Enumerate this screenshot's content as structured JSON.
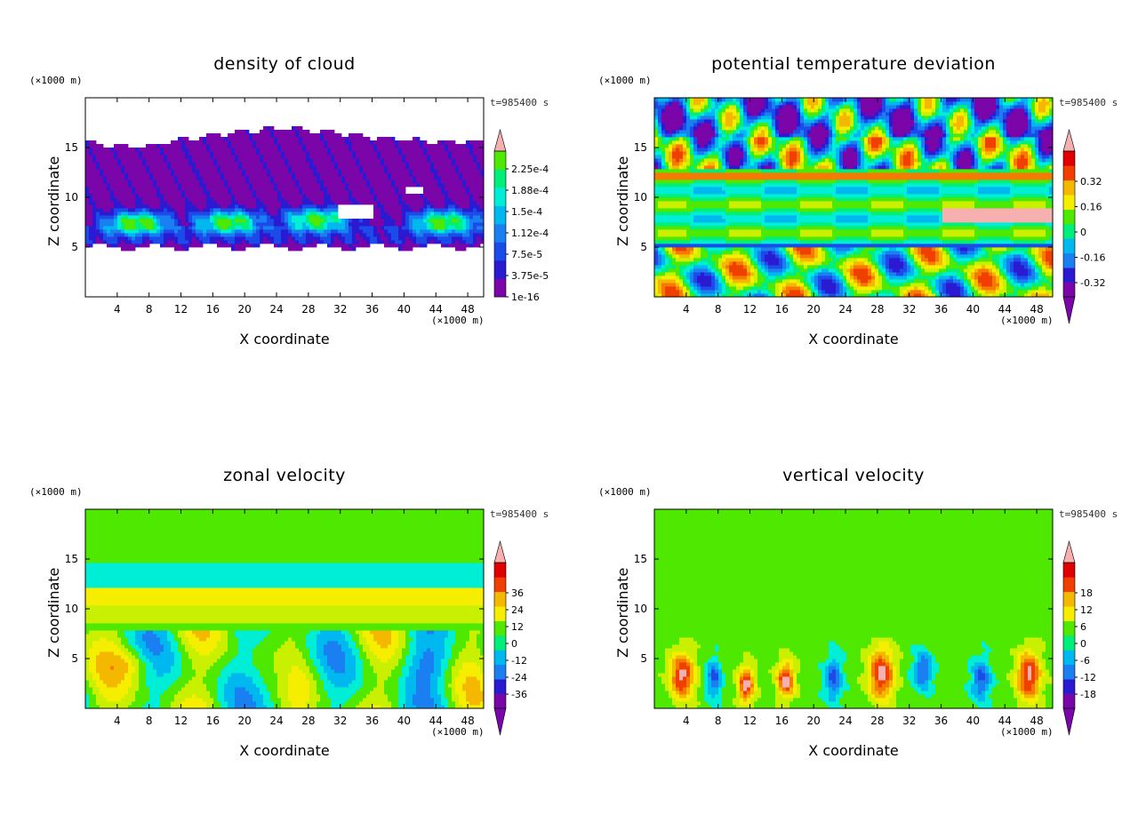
{
  "colors": {
    "palette": [
      "#7a05a8",
      "#2a1ad2",
      "#1b4be8",
      "#1a7ff0",
      "#00b8f0",
      "#00eed6",
      "#00ee7a",
      "#4ee800",
      "#c8f000",
      "#f5ee00",
      "#f5b800",
      "#f57a00",
      "#f04000",
      "#e00000",
      "#f7b0b0"
    ]
  },
  "chart_data": [
    {
      "type": "heatmap",
      "title": "density of cloud",
      "xlabel": "X coordinate",
      "ylabel": "Z coordinate",
      "x_unit": "(×1000 m)",
      "y_unit": "(×1000 m)",
      "time_label": "t=985400 s",
      "xlim": [
        0,
        50
      ],
      "ylim": [
        0,
        20
      ],
      "x_ticks": [
        4,
        8,
        12,
        16,
        20,
        24,
        28,
        32,
        36,
        40,
        44,
        48
      ],
      "y_ticks": [
        5,
        10,
        15
      ],
      "colorbar_labels": [
        "1e-16",
        "3.75e-5",
        "7.5e-5",
        "1.12e-4",
        "1.5e-4",
        "1.88e-4",
        "2.25e-4"
      ],
      "colorbar_min_triangle": false
    },
    {
      "type": "heatmap",
      "title": "potential temperature deviation",
      "xlabel": "X coordinate",
      "ylabel": "Z coordinate",
      "x_unit": "(×1000 m)",
      "y_unit": "(×1000 m)",
      "time_label": "t=985400 s",
      "xlim": [
        0,
        50
      ],
      "ylim": [
        0,
        20
      ],
      "x_ticks": [
        4,
        8,
        12,
        16,
        20,
        24,
        28,
        32,
        36,
        40,
        44,
        48
      ],
      "y_ticks": [
        5,
        10,
        15
      ],
      "colorbar_labels": [
        "-0.32",
        "-0.16",
        "0",
        "0.16",
        "0.32"
      ],
      "colorbar_min_triangle": true
    },
    {
      "type": "heatmap",
      "title": "zonal velocity",
      "xlabel": "X coordinate",
      "ylabel": "Z coordinate",
      "x_unit": "(×1000 m)",
      "y_unit": "(×1000 m)",
      "time_label": "t=985400 s",
      "xlim": [
        0,
        50
      ],
      "ylim": [
        0,
        20
      ],
      "x_ticks": [
        4,
        8,
        12,
        16,
        20,
        24,
        28,
        32,
        36,
        40,
        44,
        48
      ],
      "y_ticks": [
        5,
        10,
        15
      ],
      "colorbar_labels": [
        "-36",
        "-24",
        "-12",
        "0",
        "12",
        "24",
        "36"
      ],
      "colorbar_min_triangle": true
    },
    {
      "type": "heatmap",
      "title": "vertical velocity",
      "xlabel": "X coordinate",
      "ylabel": "Z coordinate",
      "x_unit": "(×1000 m)",
      "y_unit": "(×1000 m)",
      "time_label": "t=985400 s",
      "xlim": [
        0,
        50
      ],
      "ylim": [
        0,
        20
      ],
      "x_ticks": [
        4,
        8,
        12,
        16,
        20,
        24,
        28,
        32,
        36,
        40,
        44,
        48
      ],
      "y_ticks": [
        5,
        10,
        15
      ],
      "colorbar_labels": [
        "-18",
        "-12",
        "-6",
        "0",
        "6",
        "12",
        "18"
      ],
      "colorbar_min_triangle": true
    }
  ]
}
